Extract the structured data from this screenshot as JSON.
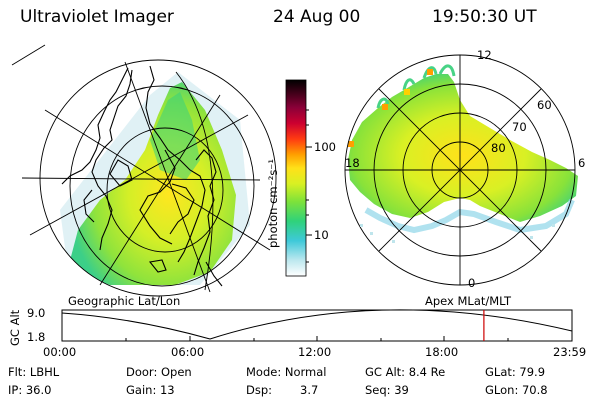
{
  "header": {
    "instrument": "Ultraviolet Imager",
    "date": "24 Aug 00",
    "time": "19:50:30 UT"
  },
  "colorbar": {
    "unit_label": "photon cm⁻²s⁻¹",
    "ticks": [
      "100",
      "10"
    ],
    "colors": [
      "#ffffff",
      "#bde8ef",
      "#3ec9d9",
      "#2fd27a",
      "#7ee23a",
      "#d8f023",
      "#ffe119",
      "#ff9f00",
      "#ff3a12",
      "#cc0030",
      "#8a0038",
      "#44001a",
      "#000000"
    ]
  },
  "polar_plot": {
    "mlat_labels": [
      "60",
      "70",
      "80"
    ],
    "mlt_labels": {
      "top": "12",
      "left": "18",
      "right": "6",
      "bottom": "0"
    }
  },
  "projections": {
    "left": "Geographic Lat/Lon",
    "right": "Apex MLat/MLT"
  },
  "altitude_plot": {
    "axis_label": "GC Alt",
    "y_ticks": [
      "9.0",
      "1.8"
    ],
    "x_ticks": [
      "00:00",
      "06:00",
      "12:00",
      "18:00",
      "23:59"
    ],
    "current_time_marker_hours": 19.84,
    "marker_color": "#cc0000"
  },
  "info": {
    "filter": "Flt: LBHL",
    "ip": "IP: 36.0",
    "door": "Door: Open",
    "gain": "Gain: 13",
    "mode": "Mode: Normal",
    "dsp_label": "Dsp:",
    "dsp_value": "3.7",
    "gc_alt": "GC Alt: 8.4 Re",
    "seq": "Seq: 39",
    "glat": "GLat:  79.9",
    "glon": "GLon:  70.8"
  }
}
